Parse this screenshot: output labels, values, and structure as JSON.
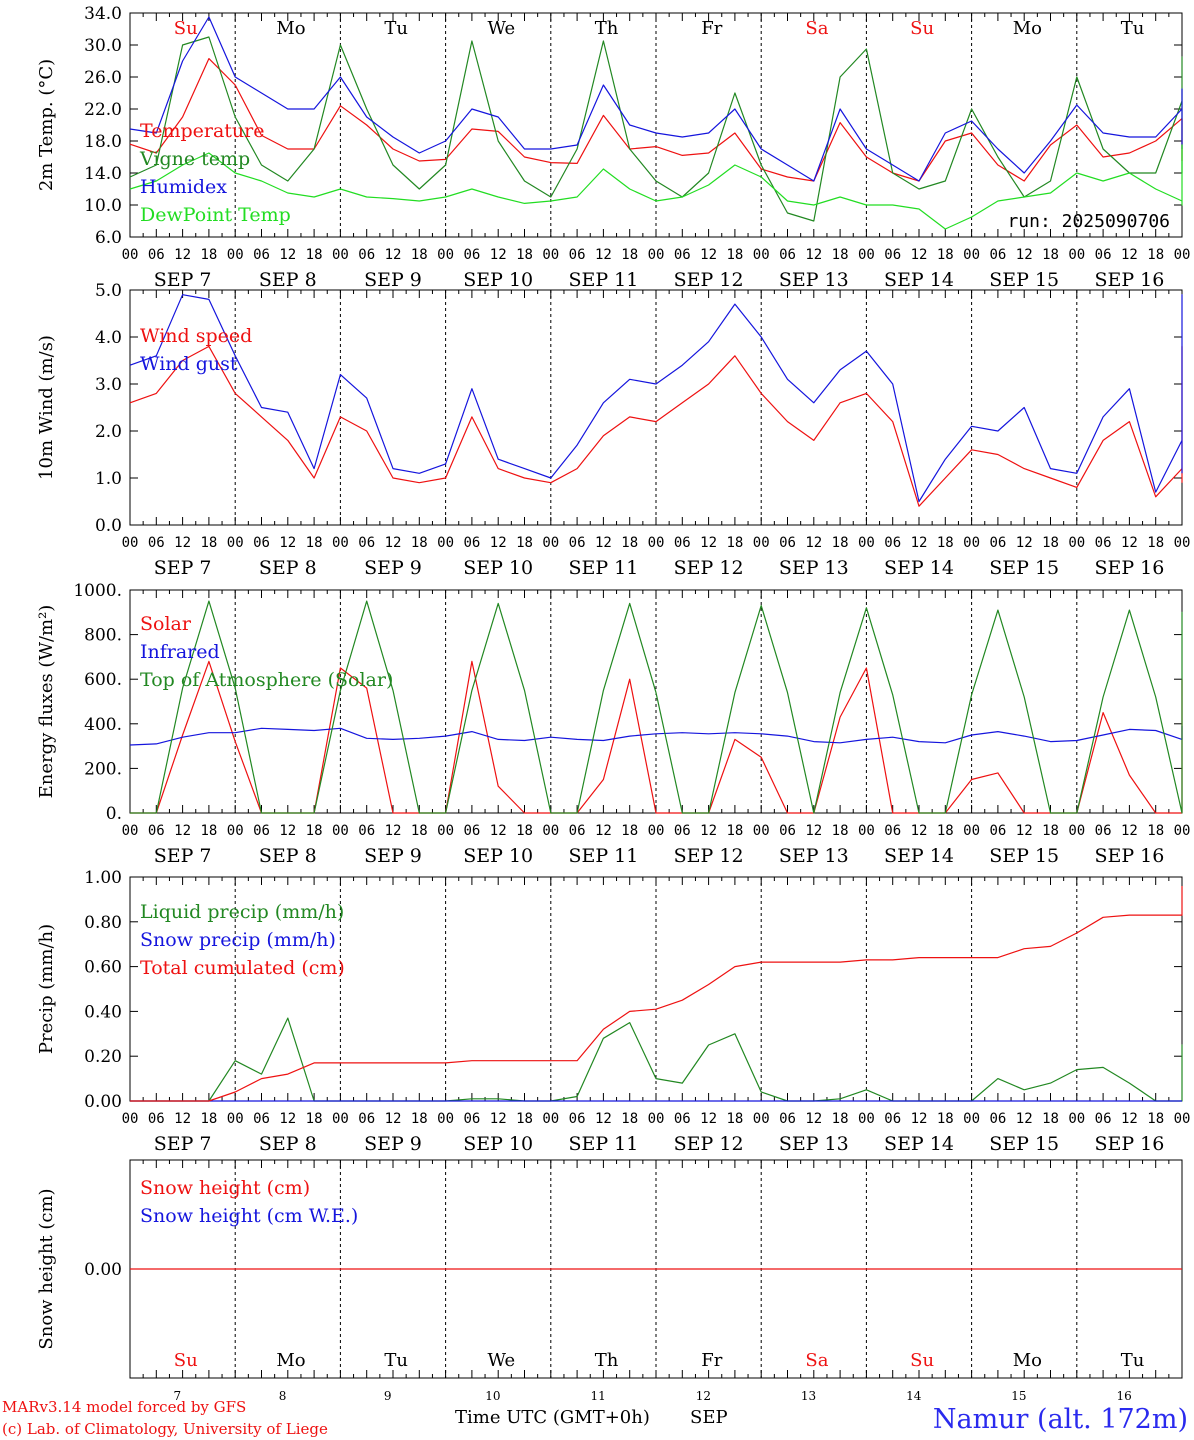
{
  "colors": {
    "red": "#ee1111",
    "green": "#228822",
    "lightgreen": "#22dd22",
    "blue": "#1515dd",
    "black": "#000000",
    "title_blue": "#2a2aee"
  },
  "days": [
    "Su",
    "Mo",
    "Tu",
    "We",
    "Th",
    "Fr",
    "Sa",
    "Su",
    "Mo",
    "Tu"
  ],
  "day_colors": [
    "red",
    "black",
    "black",
    "black",
    "black",
    "black",
    "red",
    "red",
    "black",
    "black"
  ],
  "date_labels": [
    "SEP  7",
    "SEP  8",
    "SEP  9",
    "SEP 10",
    "SEP 11",
    "SEP 12",
    "SEP 13",
    "SEP 14",
    "SEP 15",
    "SEP 16"
  ],
  "hour_ticks": [
    "00",
    "06",
    "12",
    "18"
  ],
  "footer_dates": [
    "7",
    "8",
    "9",
    "10",
    "11",
    "12",
    "13",
    "14",
    "15",
    "16"
  ],
  "footer": {
    "line1": "MARv3.14 model forced by GFS",
    "line2": "(c) Lab. of Climatology, University of Liege",
    "axis_title": "Time UTC (GMT+0h)",
    "month": "SEP",
    "station": "Namur (alt. 172m)"
  },
  "chart_data": [
    {
      "type": "line",
      "ylabel": "2m Temp. (°C)",
      "ylim": [
        6.0,
        34.0
      ],
      "yticks": [
        "6.0",
        "10.0",
        "14.0",
        "18.0",
        "22.0",
        "26.0",
        "30.0",
        "34.0"
      ],
      "annotation": "run: 2025090706",
      "x_step_hours": 6,
      "series": [
        {
          "name": "Temperature",
          "color": "red",
          "values": [
            17.6,
            16.5,
            21,
            28.3,
            25,
            18.7,
            17,
            17,
            22.4,
            20,
            17,
            15.5,
            15.7,
            19.5,
            19.2,
            16,
            15.3,
            15.2,
            21.2,
            17,
            17.3,
            16.2,
            16.5,
            19,
            14.5,
            13.5,
            13,
            20.3,
            16,
            14,
            13,
            18,
            19,
            15,
            13,
            17.5,
            20,
            16,
            16.5,
            18,
            20.8,
            18,
            16.5,
            16,
            15.7,
            19.5,
            17,
            15.5
          ]
        },
        {
          "name": "Vigne temp",
          "color": "green",
          "values": [
            13.5,
            15,
            30,
            31,
            21,
            15,
            13,
            17,
            30,
            22,
            15,
            12,
            15,
            30.5,
            18,
            13,
            11,
            17,
            30.5,
            17,
            13,
            11,
            14,
            24,
            15,
            9,
            8,
            26,
            29.5,
            14,
            12,
            13,
            22,
            16,
            11,
            13,
            26,
            17,
            14,
            14,
            23,
            18,
            14,
            15,
            14,
            28.5,
            16,
            14
          ]
        },
        {
          "name": "Humidex",
          "color": "blue",
          "values": [
            19.5,
            19,
            28,
            33.5,
            26,
            24,
            22,
            22,
            26,
            21,
            18.5,
            16.5,
            18,
            22,
            21,
            17,
            17,
            17.5,
            25,
            20,
            19,
            18.5,
            19,
            22,
            17,
            15,
            13,
            22,
            17,
            15,
            13,
            19,
            20.5,
            17,
            14,
            18,
            22.5,
            19,
            18.5,
            18.5,
            22,
            24.5,
            23,
            22,
            21,
            23,
            20,
            17
          ]
        },
        {
          "name": "DewPoint Temp",
          "color": "lightgreen",
          "values": [
            12,
            13,
            15,
            16.5,
            14,
            13,
            11.5,
            11,
            12,
            11,
            10.8,
            10.5,
            11,
            12,
            11,
            10.2,
            10.5,
            11,
            14.5,
            12,
            10.5,
            11,
            12.5,
            15,
            13.5,
            10.5,
            10,
            11,
            10,
            10,
            9.5,
            7,
            8.5,
            10.5,
            11,
            11.5,
            14,
            13,
            14,
            12,
            10.5,
            10,
            14,
            17.5,
            16,
            16,
            15.5,
            13
          ]
        }
      ]
    },
    {
      "type": "line",
      "ylabel": "10m Wind (m/s)",
      "ylim": [
        0.0,
        5.0
      ],
      "yticks": [
        "0.0",
        "1.0",
        "2.0",
        "3.0",
        "4.0",
        "5.0"
      ],
      "x_step_hours": 6,
      "series": [
        {
          "name": "Wind speed",
          "color": "red",
          "values": [
            2.6,
            2.8,
            3.5,
            3.8,
            2.8,
            2.3,
            1.8,
            1,
            2.3,
            2.0,
            1,
            0.9,
            1.0,
            2.3,
            1.2,
            1,
            0.9,
            1.2,
            1.9,
            2.3,
            2.2,
            2.6,
            3.0,
            3.6,
            2.8,
            2.2,
            1.8,
            2.6,
            2.8,
            2.2,
            0.4,
            1.0,
            1.6,
            1.5,
            1.2,
            1.0,
            0.8,
            1.8,
            2.2,
            0.6,
            1.2,
            2.8,
            3.8,
            2.6,
            1.5,
            1.4,
            1.5,
            0.9
          ]
        },
        {
          "name": "Wind gust",
          "color": "blue",
          "values": [
            3.4,
            3.6,
            4.9,
            4.8,
            3.6,
            2.5,
            2.4,
            1.2,
            3.2,
            2.7,
            1.2,
            1.1,
            1.3,
            2.9,
            1.4,
            1.2,
            1.0,
            1.7,
            2.6,
            3.1,
            3.0,
            3.4,
            3.9,
            4.7,
            4.0,
            3.1,
            2.6,
            3.3,
            3.7,
            3.0,
            0.5,
            1.4,
            2.1,
            2.0,
            2.5,
            1.2,
            1.1,
            2.3,
            2.9,
            0.7,
            1.8,
            3.9,
            4.9,
            3.3,
            1.9,
            1.9,
            1.8,
            1.1
          ]
        }
      ]
    },
    {
      "type": "line",
      "ylabel": "Energy fluxes (W/m²)",
      "ylim": [
        0,
        1000
      ],
      "yticks": [
        "0.",
        "200.",
        "400.",
        "600.",
        "800.",
        "1000."
      ],
      "x_step_hours": 6,
      "series": [
        {
          "name": "Solar",
          "color": "red",
          "values": [
            0,
            0,
            350,
            680,
            320,
            0,
            0,
            0,
            650,
            560,
            0,
            0,
            0,
            680,
            120,
            0,
            0,
            0,
            150,
            600,
            0,
            0,
            0,
            330,
            250,
            0,
            0,
            430,
            650,
            0,
            0,
            0,
            150,
            180,
            0,
            0,
            0,
            450,
            170,
            0,
            0,
            0,
            160,
            180,
            0,
            0,
            120,
            600
          ]
        },
        {
          "name": "Infrared",
          "color": "blue",
          "values": [
            305,
            310,
            340,
            360,
            360,
            380,
            375,
            370,
            380,
            335,
            330,
            335,
            345,
            365,
            330,
            325,
            340,
            330,
            325,
            345,
            355,
            360,
            355,
            360,
            355,
            345,
            320,
            315,
            330,
            340,
            320,
            315,
            350,
            365,
            345,
            320,
            325,
            350,
            375,
            370,
            330,
            330,
            375,
            390,
            385,
            375,
            375,
            350
          ]
        },
        {
          "name": "Top of Atmosphere (Solar)",
          "color": "green",
          "values": [
            0,
            0,
            560,
            950,
            560,
            0,
            0,
            0,
            550,
            950,
            550,
            0,
            0,
            550,
            940,
            550,
            0,
            0,
            550,
            940,
            540,
            0,
            0,
            540,
            930,
            540,
            0,
            540,
            920,
            530,
            0,
            0,
            530,
            910,
            520,
            0,
            0,
            520,
            910,
            520,
            0,
            0,
            510,
            900,
            510,
            0,
            0,
            510
          ]
        }
      ]
    },
    {
      "type": "line",
      "ylabel": "Precip (mm/h)",
      "ylim": [
        0.0,
        1.0
      ],
      "yticks": [
        "0.00",
        "0.20",
        "0.40",
        "0.60",
        "0.80",
        "1.00"
      ],
      "x_step_hours": 6,
      "series": [
        {
          "name": "Liquid precip (mm/h)",
          "color": "green",
          "values": [
            0,
            0,
            0,
            0,
            0.18,
            0.12,
            0.37,
            0,
            0,
            0,
            0,
            0,
            0,
            0.01,
            0.01,
            0,
            0,
            0.02,
            0.28,
            0.35,
            0.1,
            0.08,
            0.25,
            0.3,
            0.04,
            0,
            0,
            0.01,
            0.05,
            0,
            0,
            0,
            0,
            0.1,
            0.05,
            0.08,
            0.14,
            0.15,
            0.08,
            0,
            0,
            0.04,
            0.1,
            0.25,
            0.08,
            0,
            0.02,
            0.08
          ]
        },
        {
          "name": "Snow precip (mm/h)",
          "color": "blue",
          "values": [
            0,
            0,
            0,
            0,
            0,
            0,
            0,
            0,
            0,
            0,
            0,
            0,
            0,
            0,
            0,
            0,
            0,
            0,
            0,
            0,
            0,
            0,
            0,
            0,
            0,
            0,
            0,
            0,
            0,
            0,
            0,
            0,
            0,
            0,
            0,
            0,
            0,
            0,
            0,
            0,
            0,
            0,
            0,
            0,
            0,
            0,
            0,
            0
          ]
        },
        {
          "name": "Total cumulated (cm)",
          "color": "red",
          "values": [
            0,
            0,
            0,
            0,
            0.04,
            0.1,
            0.12,
            0.17,
            0.17,
            0.17,
            0.17,
            0.17,
            0.17,
            0.18,
            0.18,
            0.18,
            0.18,
            0.18,
            0.32,
            0.4,
            0.41,
            0.45,
            0.52,
            0.6,
            0.62,
            0.62,
            0.62,
            0.62,
            0.63,
            0.63,
            0.64,
            0.64,
            0.64,
            0.64,
            0.68,
            0.69,
            0.75,
            0.82,
            0.83,
            0.83,
            0.83,
            0.83,
            0.84,
            0.88,
            0.93,
            0.95,
            0.96,
            0.96
          ]
        }
      ]
    },
    {
      "type": "line",
      "ylabel": "Snow height (cm)",
      "yticks": [
        "0.00"
      ],
      "x_step_hours": 6,
      "series": [
        {
          "name": "Snow height (cm)",
          "color": "red",
          "values": [
            0,
            0,
            0,
            0,
            0,
            0,
            0,
            0,
            0,
            0,
            0,
            0,
            0,
            0,
            0,
            0,
            0,
            0,
            0,
            0,
            0,
            0,
            0,
            0,
            0,
            0,
            0,
            0,
            0,
            0,
            0,
            0,
            0,
            0,
            0,
            0,
            0,
            0,
            0,
            0,
            0,
            0,
            0,
            0,
            0,
            0,
            0,
            0
          ]
        },
        {
          "name": "Snow height (cm W.E.)",
          "color": "blue"
        }
      ]
    }
  ]
}
